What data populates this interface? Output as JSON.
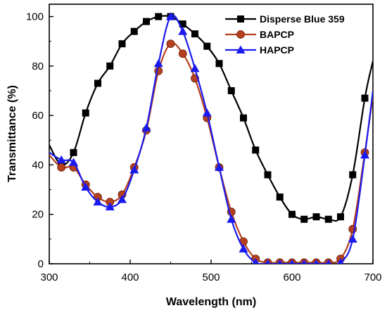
{
  "chart_data": {
    "type": "line",
    "title": "",
    "xlabel": "Wavelength (nm)",
    "ylabel": "Transmittance (%)",
    "xlim": [
      300,
      700
    ],
    "ylim": [
      0,
      105
    ],
    "x_ticks": [
      300,
      400,
      500,
      600,
      700
    ],
    "y_ticks": [
      0,
      20,
      40,
      60,
      80,
      100
    ],
    "grid": false,
    "legend_position": "top-right",
    "series": [
      {
        "name": "Disperse Blue 359",
        "color": "#000000",
        "marker": "square",
        "x": [
          300,
          315,
          330,
          345,
          360,
          375,
          390,
          405,
          420,
          435,
          450,
          465,
          480,
          495,
          510,
          525,
          540,
          555,
          570,
          585,
          600,
          615,
          630,
          645,
          660,
          675,
          690,
          700
        ],
        "y": [
          48,
          40,
          45,
          61,
          73,
          80,
          89,
          94,
          98,
          100,
          100,
          97,
          93,
          88,
          81,
          70,
          59,
          46,
          36,
          27,
          20,
          18,
          19,
          18,
          19,
          36,
          67,
          82
        ]
      },
      {
        "name": "BAPCP",
        "color": "#b5401e",
        "marker": "circle",
        "x": [
          300,
          315,
          330,
          345,
          360,
          375,
          390,
          405,
          420,
          435,
          450,
          465,
          480,
          495,
          510,
          525,
          540,
          555,
          570,
          585,
          600,
          615,
          630,
          645,
          660,
          675,
          690,
          700
        ],
        "y": [
          44,
          39,
          39,
          32,
          27,
          25,
          28,
          39,
          54,
          78,
          89,
          85,
          75,
          59,
          39,
          21,
          9,
          2,
          0.5,
          0.5,
          0.5,
          0.5,
          0.5,
          0.5,
          2,
          14,
          45,
          68
        ]
      },
      {
        "name": "HAPCP",
        "color": "#1a1aee",
        "marker": "triangle",
        "x": [
          300,
          315,
          330,
          345,
          360,
          375,
          390,
          405,
          420,
          435,
          450,
          465,
          480,
          495,
          510,
          525,
          540,
          555,
          570,
          585,
          600,
          615,
          630,
          645,
          660,
          675,
          690,
          700
        ],
        "y": [
          45,
          42,
          41,
          31,
          25,
          23,
          26,
          38,
          55,
          81,
          100,
          94,
          79,
          61,
          39,
          18,
          6,
          0.5,
          0,
          0,
          0,
          0,
          0,
          0,
          0.5,
          10,
          44,
          70
        ]
      }
    ]
  }
}
